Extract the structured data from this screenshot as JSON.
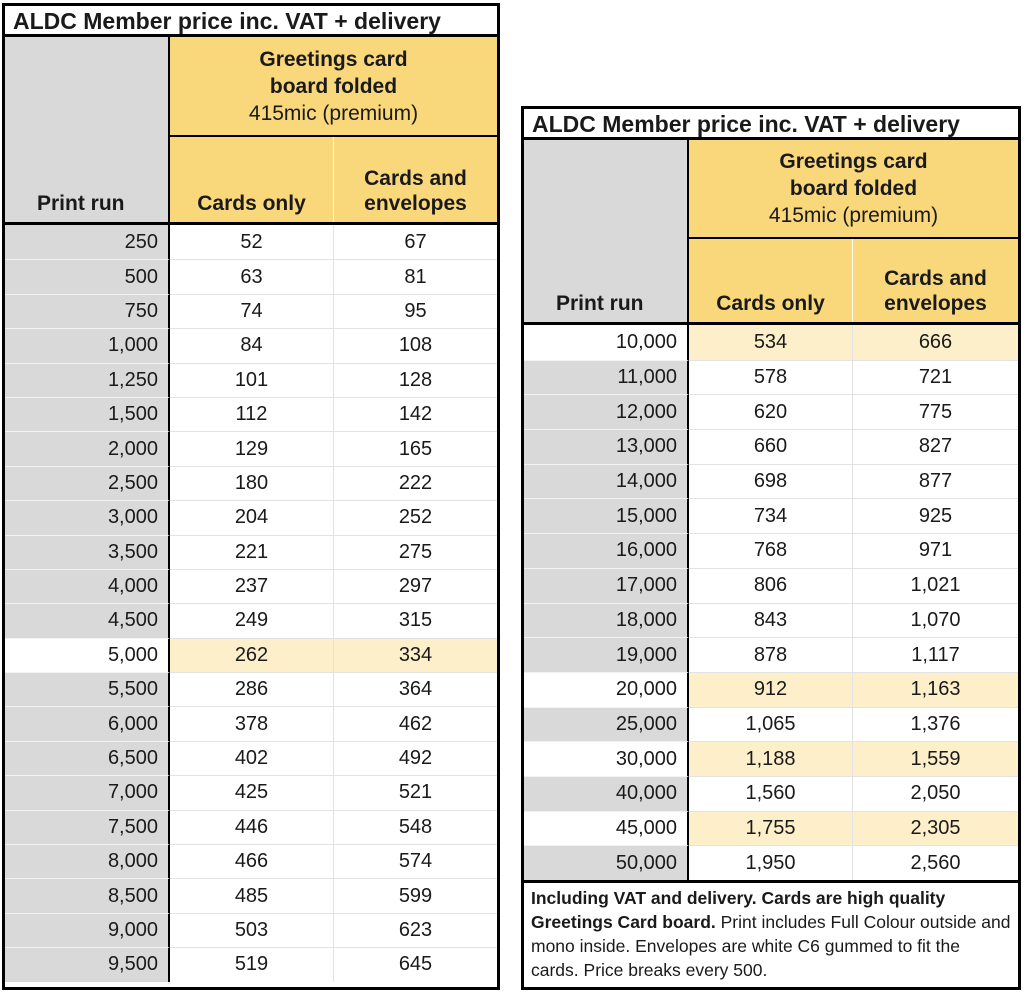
{
  "colors": {
    "header_gold": "#F9D77B",
    "highlight_yellow": "#FCEFC9",
    "row_gray": "#D9D9D9",
    "border_black": "#000000"
  },
  "left_table": {
    "title": "ALDC Member price inc. VAT + delivery",
    "print_run_header": "Print run",
    "group_header": {
      "line1": "Greetings card",
      "line2": "board folded",
      "line3": "415mic (premium)"
    },
    "column_headers": {
      "cards_only": "Cards only",
      "cards_envelopes": "Cards and envelopes"
    },
    "rows": [
      {
        "run": "250",
        "cards": "52",
        "env": "67",
        "hl": false
      },
      {
        "run": "500",
        "cards": "63",
        "env": "81",
        "hl": false
      },
      {
        "run": "750",
        "cards": "74",
        "env": "95",
        "hl": false
      },
      {
        "run": "1,000",
        "cards": "84",
        "env": "108",
        "hl": false
      },
      {
        "run": "1,250",
        "cards": "101",
        "env": "128",
        "hl": false
      },
      {
        "run": "1,500",
        "cards": "112",
        "env": "142",
        "hl": false
      },
      {
        "run": "2,000",
        "cards": "129",
        "env": "165",
        "hl": false
      },
      {
        "run": "2,500",
        "cards": "180",
        "env": "222",
        "hl": false
      },
      {
        "run": "3,000",
        "cards": "204",
        "env": "252",
        "hl": false
      },
      {
        "run": "3,500",
        "cards": "221",
        "env": "275",
        "hl": false
      },
      {
        "run": "4,000",
        "cards": "237",
        "env": "297",
        "hl": false
      },
      {
        "run": "4,500",
        "cards": "249",
        "env": "315",
        "hl": false
      },
      {
        "run": "5,000",
        "cards": "262",
        "env": "334",
        "hl": true
      },
      {
        "run": "5,500",
        "cards": "286",
        "env": "364",
        "hl": false
      },
      {
        "run": "6,000",
        "cards": "378",
        "env": "462",
        "hl": false
      },
      {
        "run": "6,500",
        "cards": "402",
        "env": "492",
        "hl": false
      },
      {
        "run": "7,000",
        "cards": "425",
        "env": "521",
        "hl": false
      },
      {
        "run": "7,500",
        "cards": "446",
        "env": "548",
        "hl": false
      },
      {
        "run": "8,000",
        "cards": "466",
        "env": "574",
        "hl": false
      },
      {
        "run": "8,500",
        "cards": "485",
        "env": "599",
        "hl": false
      },
      {
        "run": "9,000",
        "cards": "503",
        "env": "623",
        "hl": false
      },
      {
        "run": "9,500",
        "cards": "519",
        "env": "645",
        "hl": false
      }
    ]
  },
  "right_table": {
    "title": "ALDC Member price inc. VAT + delivery",
    "print_run_header": "Print run",
    "group_header": {
      "line1": "Greetings card",
      "line2": "board folded",
      "line3": "415mic (premium)"
    },
    "column_headers": {
      "cards_only": "Cards only",
      "cards_envelopes": "Cards and envelopes"
    },
    "rows": [
      {
        "run": "10,000",
        "cards": "534",
        "env": "666",
        "hl": true
      },
      {
        "run": "11,000",
        "cards": "578",
        "env": "721",
        "hl": false
      },
      {
        "run": "12,000",
        "cards": "620",
        "env": "775",
        "hl": false
      },
      {
        "run": "13,000",
        "cards": "660",
        "env": "827",
        "hl": false
      },
      {
        "run": "14,000",
        "cards": "698",
        "env": "877",
        "hl": false
      },
      {
        "run": "15,000",
        "cards": "734",
        "env": "925",
        "hl": false
      },
      {
        "run": "16,000",
        "cards": "768",
        "env": "971",
        "hl": false
      },
      {
        "run": "17,000",
        "cards": "806",
        "env": "1,021",
        "hl": false
      },
      {
        "run": "18,000",
        "cards": "843",
        "env": "1,070",
        "hl": false
      },
      {
        "run": "19,000",
        "cards": "878",
        "env": "1,117",
        "hl": false
      },
      {
        "run": "20,000",
        "cards": "912",
        "env": "1,163",
        "hl": true
      },
      {
        "run": "25,000",
        "cards": "1,065",
        "env": "1,376",
        "hl": false
      },
      {
        "run": "30,000",
        "cards": "1,188",
        "env": "1,559",
        "hl": true
      },
      {
        "run": "40,000",
        "cards": "1,560",
        "env": "2,050",
        "hl": false
      },
      {
        "run": "45,000",
        "cards": "1,755",
        "env": "2,305",
        "hl": true
      },
      {
        "run": "50,000",
        "cards": "1,950",
        "env": "2,560",
        "hl": false
      }
    ],
    "footer": {
      "bold": "Including VAT and delivery.  Cards are high quality Greetings Card board.",
      "normal": " Print includes Full Colour outside and mono inside. Envelopes are white C6 gummed to fit the cards. Price breaks every 500."
    }
  }
}
